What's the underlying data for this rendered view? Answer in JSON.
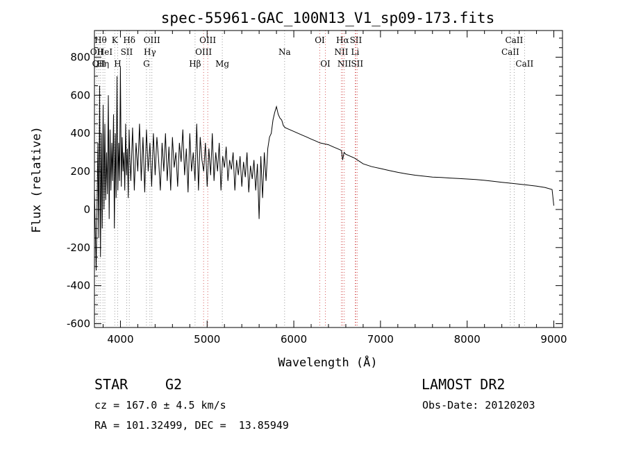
{
  "chart_data": {
    "type": "line",
    "title": "spec-55961-GAC_100N13_V1_sp09-173.fits",
    "xlabel": "Wavelength (Å)",
    "ylabel": "Flux (relative)",
    "xlim": [
      3700,
      9100
    ],
    "ylim": [
      -620,
      940
    ],
    "x_ticks": [
      4000,
      5000,
      6000,
      7000,
      8000,
      9000
    ],
    "y_ticks": [
      -600,
      -400,
      -200,
      0,
      200,
      400,
      600,
      800
    ],
    "grid": false,
    "series": [
      {
        "x": [
          3700,
          3720,
          3740,
          3750,
          3760,
          3770,
          3780,
          3790,
          3800,
          3810,
          3820,
          3830,
          3840,
          3850,
          3860,
          3870,
          3880,
          3890,
          3900,
          3910,
          3920,
          3930,
          3940,
          3950,
          3960,
          3970,
          3980,
          3990,
          4000,
          4010,
          4020,
          4030,
          4040,
          4050,
          4060,
          4070,
          4080,
          4090,
          4100,
          4110,
          4120,
          4140,
          4160,
          4180,
          4200,
          4220,
          4240,
          4260,
          4280,
          4300,
          4320,
          4340,
          4360,
          4380,
          4400,
          4420,
          4440,
          4460,
          4480,
          4500,
          4520,
          4540,
          4560,
          4580,
          4600,
          4620,
          4640,
          4660,
          4680,
          4700,
          4720,
          4740,
          4760,
          4780,
          4800,
          4820,
          4840,
          4860,
          4880,
          4900,
          4920,
          4940,
          4960,
          4980,
          5000,
          5020,
          5040,
          5060,
          5080,
          5100,
          5120,
          5140,
          5160,
          5180,
          5200,
          5220,
          5240,
          5260,
          5280,
          5300,
          5320,
          5340,
          5360,
          5380,
          5400,
          5420,
          5440,
          5460,
          5480,
          5500,
          5520,
          5540,
          5560,
          5580,
          5600,
          5620,
          5640,
          5660,
          5680,
          5700,
          5720,
          5740,
          5760,
          5780,
          5800,
          5820,
          5840,
          5860,
          5880,
          5900,
          5950,
          6000,
          6050,
          6100,
          6150,
          6200,
          6250,
          6300,
          6350,
          6400,
          6450,
          6500,
          6550,
          6563,
          6580,
          6600,
          6650,
          6700,
          6750,
          6800,
          6900,
          7000,
          7100,
          7200,
          7300,
          7400,
          7500,
          7600,
          7700,
          7800,
          7900,
          8000,
          8100,
          8200,
          8300,
          8400,
          8500,
          8600,
          8700,
          8800,
          8900,
          8980,
          9000
        ],
        "values": [
          100,
          -320,
          350,
          -150,
          650,
          -250,
          400,
          -100,
          550,
          0,
          450,
          50,
          300,
          80,
          600,
          -50,
          420,
          100,
          350,
          150,
          500,
          -100,
          400,
          60,
          700,
          100,
          350,
          150,
          750,
          120,
          380,
          200,
          300,
          100,
          450,
          180,
          320,
          60,
          420,
          250,
          150,
          430,
          100,
          350,
          200,
          450,
          150,
          380,
          90,
          420,
          200,
          350,
          120,
          400,
          180,
          380,
          260,
          100,
          350,
          200,
          400,
          150,
          330,
          100,
          380,
          220,
          300,
          120,
          350,
          250,
          420,
          180,
          320,
          90,
          400,
          200,
          300,
          150,
          450,
          100,
          380,
          260,
          200,
          350,
          120,
          320,
          180,
          400,
          150,
          300,
          200,
          350,
          100,
          280,
          220,
          330,
          150,
          260,
          210,
          300,
          100,
          260,
          180,
          280,
          120,
          250,
          170,
          300,
          90,
          230,
          160,
          260,
          100,
          240,
          -50,
          280,
          60,
          300,
          150,
          320,
          380,
          400,
          470,
          510,
          540,
          500,
          480,
          470,
          440,
          430,
          420,
          410,
          400,
          390,
          380,
          370,
          360,
          350,
          345,
          340,
          330,
          320,
          310,
          260,
          300,
          290,
          280,
          270,
          255,
          240,
          225,
          215,
          205,
          195,
          187,
          180,
          175,
          170,
          168,
          165,
          163,
          160,
          157,
          153,
          148,
          143,
          138,
          133,
          128,
          123,
          115,
          105,
          20
        ]
      }
    ],
    "line_markers": [
      {
        "wl": 3727,
        "label": "OII",
        "row": 1,
        "color": "#808080"
      },
      {
        "wl": 3750,
        "label": "OII",
        "row": 2,
        "color": "#808080"
      },
      {
        "wl": 3771,
        "label": "Hθ",
        "row": 0,
        "color": "#808080"
      },
      {
        "wl": 3798,
        "label": "Hη",
        "row": 2,
        "color": "#808080"
      },
      {
        "wl": 3820,
        "label": "HeI",
        "row": 1,
        "color": "#808080"
      },
      {
        "wl": 3934,
        "label": "K",
        "row": 0,
        "color": "#808080"
      },
      {
        "wl": 3968,
        "label": "H",
        "row": 2,
        "color": "#808080"
      },
      {
        "wl": 4072,
        "label": "SII",
        "row": 1,
        "color": "#808080"
      },
      {
        "wl": 4102,
        "label": "Hδ",
        "row": 0,
        "color": "#808080"
      },
      {
        "wl": 4300,
        "label": "G",
        "row": 2,
        "color": "#808080"
      },
      {
        "wl": 4340,
        "label": "Hγ",
        "row": 1,
        "color": "#808080"
      },
      {
        "wl": 4363,
        "label": "OIII",
        "row": 0,
        "color": "#808080"
      },
      {
        "wl": 4861,
        "label": "Hβ",
        "row": 2,
        "color": "#808080"
      },
      {
        "wl": 4959,
        "label": "OIII",
        "row": 1,
        "color": "#cc3333"
      },
      {
        "wl": 5007,
        "label": "OIII",
        "row": 0,
        "color": "#cc3333"
      },
      {
        "wl": 5175,
        "label": "Mg",
        "row": 2,
        "color": "#808080"
      },
      {
        "wl": 5894,
        "label": "Na",
        "row": 1,
        "color": "#808080"
      },
      {
        "wl": 6300,
        "label": "OI",
        "row": 0,
        "color": "#cc3333"
      },
      {
        "wl": 6364,
        "label": "OI",
        "row": 2,
        "color": "#cc3333"
      },
      {
        "wl": 6548,
        "label": "NII",
        "row": 1,
        "color": "#cc3333"
      },
      {
        "wl": 6563,
        "label": "Hα",
        "row": 0,
        "color": "#cc3333"
      },
      {
        "wl": 6583,
        "label": "NII",
        "row": 2,
        "color": "#cc3333"
      },
      {
        "wl": 6708,
        "label": "Li",
        "row": 1,
        "color": "#cc3333"
      },
      {
        "wl": 6716,
        "label": "SII",
        "row": 0,
        "color": "#cc3333"
      },
      {
        "wl": 6731,
        "label": "SII",
        "row": 2,
        "color": "#cc3333"
      },
      {
        "wl": 8498,
        "label": "CaII",
        "row": 1,
        "color": "#808080"
      },
      {
        "wl": 8542,
        "label": "CaII",
        "row": 0,
        "color": "#808080"
      },
      {
        "wl": 8662,
        "label": "CaII",
        "row": 2,
        "color": "#808080"
      }
    ]
  },
  "info": {
    "object_type": "STAR",
    "subclass": "G2",
    "survey": "LAMOST DR2",
    "redshift": "cz = 167.0 ± 4.5 km/s",
    "obs_date": "Obs-Date: 20120203",
    "coords": "RA = 101.32499, DEC =  13.85949"
  },
  "colors": {
    "spectrum": "#000000",
    "marker_gray": "#808080",
    "marker_red": "#cc3333"
  }
}
